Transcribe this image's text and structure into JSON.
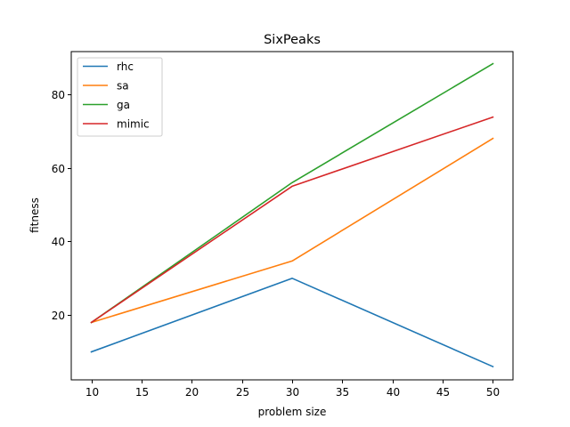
{
  "chart_data": {
    "type": "line",
    "title": "SixPeaks",
    "xlabel": "problem size",
    "ylabel": "fitness",
    "x": [
      10,
      30,
      50
    ],
    "xlim": [
      8,
      52
    ],
    "ylim": [
      2.4,
      91.6
    ],
    "xticks": [
      10,
      15,
      20,
      25,
      30,
      35,
      40,
      45,
      50
    ],
    "yticks": [
      20,
      40,
      60,
      80
    ],
    "grid": false,
    "legend_position": "top-left",
    "series": [
      {
        "name": "rhc",
        "color": "#1f77b4",
        "values": [
          10,
          30,
          6
        ]
      },
      {
        "name": "sa",
        "color": "#ff7f0e",
        "values": [
          18,
          34.7,
          68
        ]
      },
      {
        "name": "ga",
        "color": "#2ca02c",
        "values": [
          18,
          56,
          88.3
        ]
      },
      {
        "name": "mimic",
        "color": "#d62728",
        "values": [
          18,
          55,
          73.8
        ]
      }
    ]
  }
}
